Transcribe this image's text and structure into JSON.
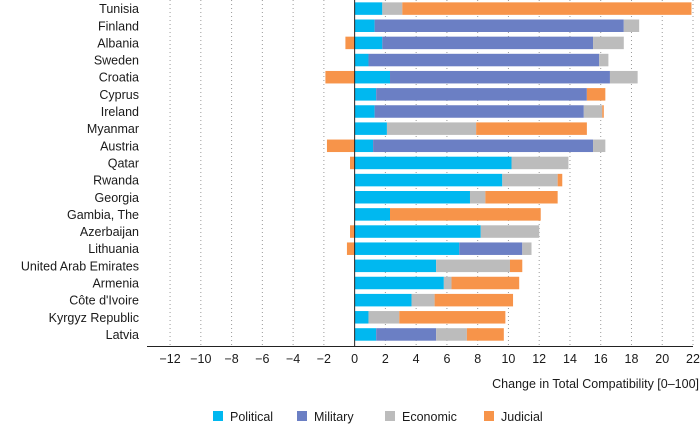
{
  "chart_data": {
    "type": "bar",
    "orientation": "horizontal",
    "stacked": true,
    "title": "",
    "xlabel": "Change in Total Compatibility [0–100]",
    "ylabel": "",
    "xlim": [
      -13.5,
      22
    ],
    "xticks": [
      -12,
      -10,
      -8,
      -6,
      -4,
      -2,
      0,
      2,
      4,
      6,
      8,
      10,
      12,
      14,
      16,
      18,
      20,
      22
    ],
    "legend_position": "bottom",
    "categories": [
      "Tunisia",
      "Finland",
      "Albania",
      "Sweden",
      "Croatia",
      "Cyprus",
      "Ireland",
      "Myanmar",
      "Austria",
      "Qatar",
      "Rwanda",
      "Georgia",
      "Gambia, The",
      "Azerbaijan",
      "Lithuania",
      "United Arab Emirates",
      "Armenia",
      "Côte d'Ivoire",
      "Kyrgyz Republic",
      "Latvia"
    ],
    "series": [
      {
        "name": "Political",
        "color": "#00b8f0",
        "values": [
          1.8,
          1.3,
          1.8,
          0.9,
          2.3,
          1.4,
          1.3,
          2.1,
          1.2,
          10.2,
          9.6,
          7.5,
          2.3,
          8.2,
          6.8,
          5.3,
          5.8,
          3.7,
          0.9,
          1.4
        ]
      },
      {
        "name": "Military",
        "color": "#6b7fc4",
        "values": [
          0,
          16.2,
          13.7,
          15.0,
          14.3,
          13.7,
          13.6,
          0,
          14.3,
          0,
          0,
          0,
          0,
          0,
          4.1,
          0,
          0,
          0,
          0,
          3.9
        ]
      },
      {
        "name": "Economic",
        "color": "#bcbcbc",
        "values": [
          1.3,
          1.0,
          2.0,
          0.6,
          1.8,
          0,
          1.2,
          5.8,
          0.8,
          3.7,
          3.6,
          1.0,
          0,
          3.8,
          0.6,
          4.8,
          0.5,
          1.5,
          2.0,
          2.0
        ]
      },
      {
        "name": "Judicial",
        "color": "#f7944a",
        "values": [
          18.8,
          0,
          -0.6,
          0,
          -1.9,
          1.2,
          0.1,
          7.2,
          -1.8,
          -0.3,
          0.3,
          4.7,
          9.8,
          -0.3,
          -0.5,
          0.8,
          4.4,
          5.1,
          6.9,
          2.4
        ]
      }
    ]
  }
}
